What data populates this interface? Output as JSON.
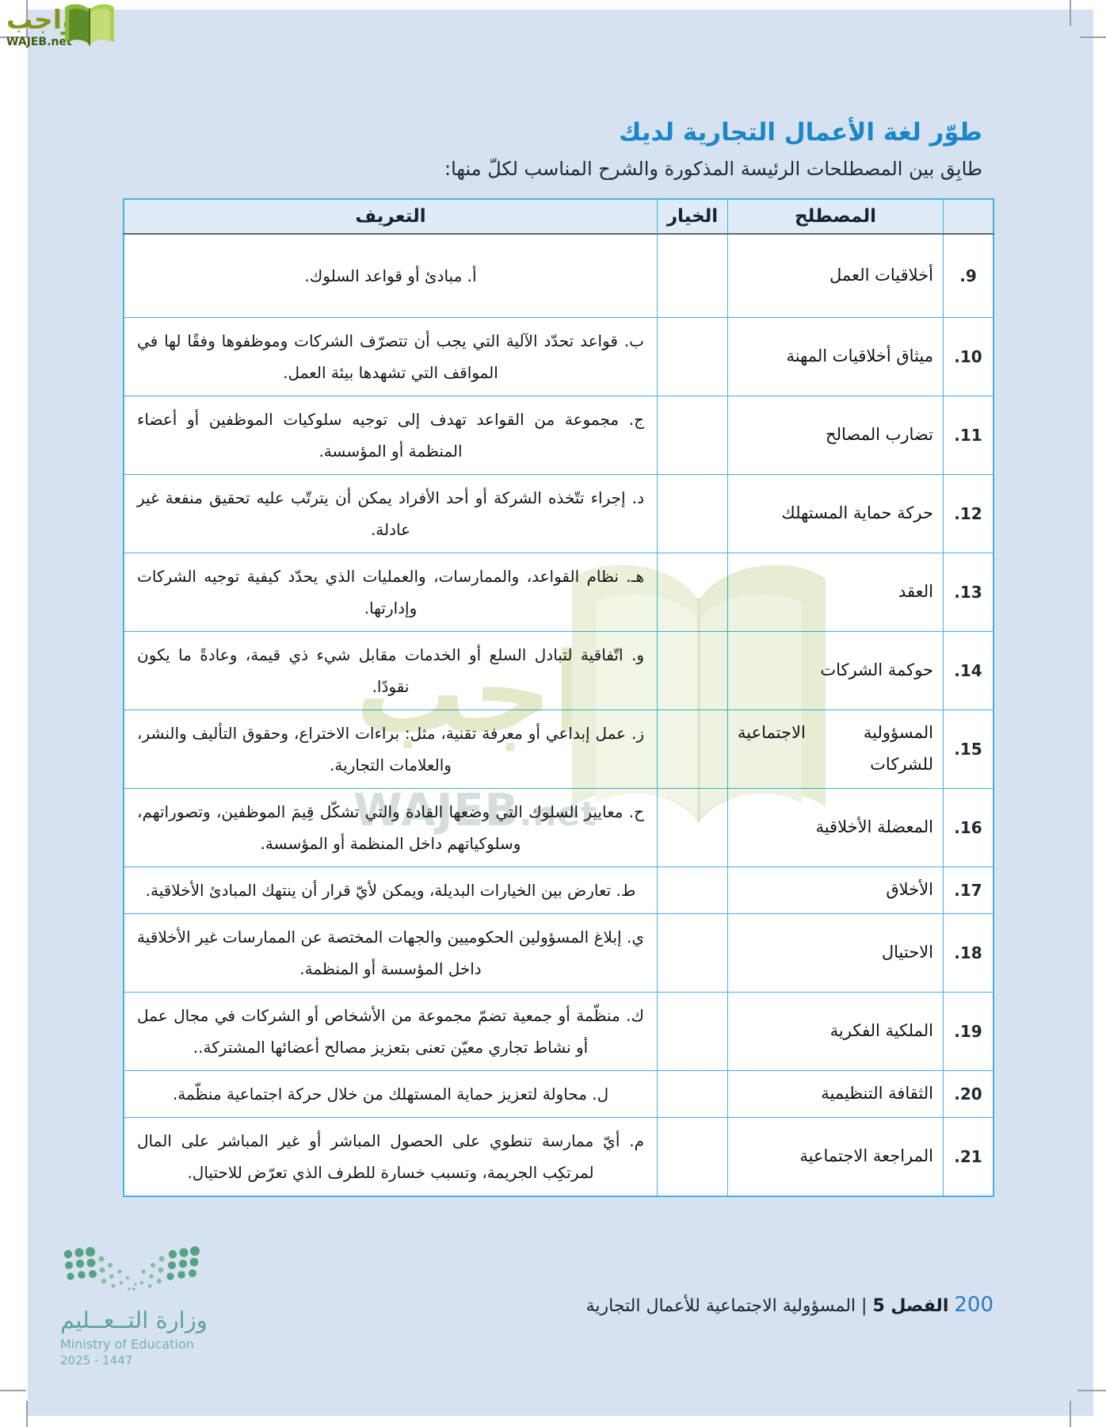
{
  "logo": {
    "arabic": "واجب",
    "latin": "WAJEB.net"
  },
  "title": "طوّر لغة الأعمال التجارية لديك",
  "instruction": "طابِق بين المصطلحات الرئيسة المذكورة والشرح المناسب لكلّ منها:",
  "table": {
    "headers": {
      "definition": "التعريف",
      "choice": "الخيار",
      "term": "المصطلح",
      "number": ""
    },
    "rows": [
      {
        "number": "9.",
        "term": "أخلاقيات العمل",
        "choice": "",
        "definition": "أ. مبادئ أو قواعد السلوك."
      },
      {
        "number": "10.",
        "term": "ميثاق أخلاقيات المهنة",
        "choice": "",
        "definition": "ب. قواعد تحدّد الآلية التي يجب أن تتصرّف الشركات وموظفوها وفقًا لها في المواقف التي تشهدها بيئة العمل."
      },
      {
        "number": "11.",
        "term": "تضارب المصالح",
        "choice": "",
        "definition": "ج. مجموعة من القواعد تهدف إلى توجيه سلوكيات الموظفين أو أعضاء المنظمة أو المؤسسة."
      },
      {
        "number": "12.",
        "term": "حركة حماية المستهلك",
        "choice": "",
        "definition": "د. إجراء تتّخذه الشركة أو أحد الأفراد يمكن أن يترتّب عليه تحقيق منفعة غير عادلة."
      },
      {
        "number": "13.",
        "term": "العقد",
        "choice": "",
        "definition": "هـ. نظام القواعد، والممارسات، والعمليات الذي يحدّد كيفية توجيه الشركات وإدارتها."
      },
      {
        "number": "14.",
        "term": "حوكمة الشركات",
        "choice": "",
        "definition": "و. اتّفاقية لتبادل السلع أو الخدمات مقابل شيء ذي قيمة، وعادةً ما يكون نقودًا."
      },
      {
        "number": "15.",
        "term": "المسؤولية الاجتماعية للشركات",
        "choice": "",
        "definition": "ز. عمل إبداعي أو معرفة تقنية، مثل: براءات الاختراع، وحقوق التأليف والنشر، والعلامات التجارية."
      },
      {
        "number": "16.",
        "term": "المعضلة الأخلاقية",
        "choice": "",
        "definition": "ح. معايير السلوك التي وضعها القادة والتي تشكّل قِيمَ الموظفين، وتصوراتهم، وسلوكياتهم داخل المنظمة أو المؤسسة."
      },
      {
        "number": "17.",
        "term": "الأخلاق",
        "choice": "",
        "definition": "ط. تعارض بين الخيارات البديلة، ويمكن لأيّ قرار أن ينتهك المبادئ الأخلاقية."
      },
      {
        "number": "18.",
        "term": "الاحتيال",
        "choice": "",
        "definition": "ي. إبلاغ المسؤولين الحكوميين والجهات المختصة عن الممارسات غير الأخلاقية داخل المؤسسة أو المنظمة."
      },
      {
        "number": "19.",
        "term": "الملكية الفكرية",
        "choice": "",
        "definition": "ك. منظّمة أو جمعية تضمّ مجموعة من الأشخاص أو الشركات في مجال عمل أو نشاط تجاري معيّن تعنى بتعزيز مصالح أعضائها المشتركة.."
      },
      {
        "number": "20.",
        "term": "الثقافة التنظيمية",
        "choice": "",
        "definition": "ل. محاولة لتعزيز حماية المستهلك من خلال حركة اجتماعية منظّمة."
      },
      {
        "number": "21.",
        "term": "المراجعة الاجتماعية",
        "choice": "",
        "definition": "م. أيّ ممارسة تنطوي على الحصول المباشر أو غير المباشر على المال لمرتكِب الجريمة، وتسبب خسارة للطرف الذي تعرّض للاحتيال."
      }
    ]
  },
  "watermark": {
    "arabic": "واجب",
    "latin_main": "WAJEB",
    "latin_suffix": ".net"
  },
  "footer": {
    "page_number": "200",
    "chapter": "الفصل 5",
    "separator": "|",
    "chapter_title": "المسؤولية الاجتماعية للأعمال التجارية"
  },
  "ministry": {
    "arabic": "وزارة التــعــليم",
    "english": "Ministry of Education",
    "years": "2025 - 1447"
  },
  "colors": {
    "page_background": "#d7e2f0",
    "table_border": "#44b1e3",
    "header_row_background": "#dfecf7",
    "title_blue": "#1b87c9",
    "footer_page_number_blue": "#2a7cc0",
    "logo_olive": "#8a941c",
    "logo_dark_green": "#3f5c15",
    "watermark_green": "#ccd89c",
    "ministry_teal": "#5fa39b"
  }
}
